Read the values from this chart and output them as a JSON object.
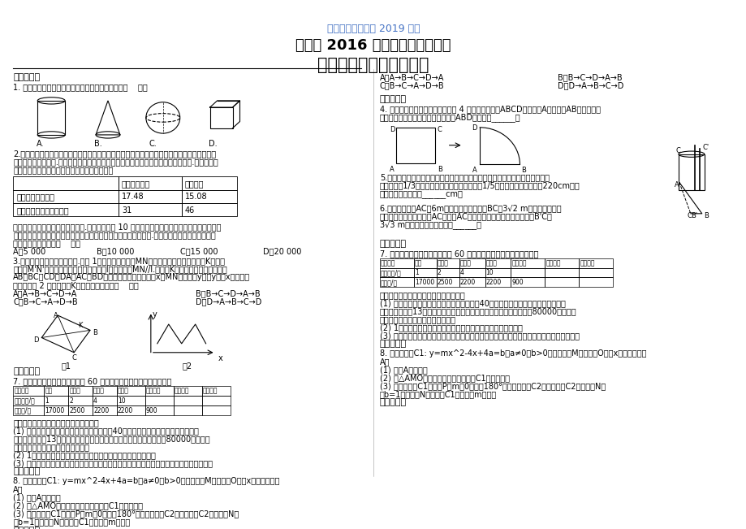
{
  "title1": "数学中考教学资料 2019 年编",
  "title2": "江西省 2016 年中等学校招生考试",
  "title3": "数学信息训练试题（二）",
  "bg_color": "#ffffff",
  "title1_color": "#4472c4",
  "title2_color": "#000000",
  "title3_color": "#000000",
  "section1": "一、选择题",
  "q1": "1. 下列几何体中，其主视图不是中心对称图形的是（    ）。",
  "q2_lines": [
    "2.油电混动汽车是一种节油、环保的新技术汽车，它将行驶过程中部分原本被浪费的能量回收储",
    "存于内置的蓄电池中.汽车在低速行驶时，使用蓄电池带动电动机驱动汽车，节约燃油.某品牌油电",
    "混动汽车与普通汽车的相关成本数据统计如下："
  ],
  "table_headers": [
    "",
    "油电混动汽车",
    "普通汽车"
  ],
  "table_row1": [
    "购买价格（万元）",
    "17.48",
    "15.08"
  ],
  "table_row2": [
    "每百公里燃油成本（元）",
    "31",
    "46"
  ],
  "q2_cont_lines": [
    "某人计划购入一辆上述品牌的汽车.他估算了未来 10 年的用车成本，在只考虑车价和燃油成本的",
    "情况下，发现选择油电混动汽车的成本不高于选择普通汽车的成本.则他在估算时，预计平均每年",
    "行驶的公里数至少为（    ）。"
  ],
  "q2_opts": [
    "A．5 000",
    "B．10 000",
    "C．15 000",
    "D．20 000"
  ],
  "q3_lines": [
    "3.小明在暗室做小孔成像实验.如图 1，固定光源（线段MN）发出的光经过小孔（动点K）成像",
    "（线段M'N'）于是移长的固定挡板（直线l）上，其中MN//l.已知点K匀速运动，其运动路径由",
    "AB、BC、CD、DA、AC、BD组成，记它的运动时间为x，MN的长度为y，若y关于x的函数图",
    "象大致如图 2 所示，则点K的运动路径可能为（    ）。"
  ],
  "q3_opts": [
    "A．A→B→C→D→A",
    "B．B→C→D→A→B",
    "C．B→C→A→D→B",
    "D．D→A→B→C→D"
  ],
  "section2": "二、填空题",
  "q4_lines": [
    "4. 如图，某数学兴趣小组将边长为 4 的正方形铁丝框ABCD变形为以A为圆心、AB为半径的扇",
    "形（忽略铁丝的粗细），则所得扇形ABD的面积为______。"
  ],
  "q5_lines": [
    "5.如图，两根筷子竖直于斜底水平的木桶中，在桶中加入水后，一根露出水面的",
    "长度是它的1/3，另一根露出水面的长度是它的1/5，两根筷子长度之和为220cm，此",
    "时木桶中水的深度是______cm。"
  ],
  "q6_lines": [
    "6.如图，钓鱼竿AC长6m，露在水面上的鱼线BC长3√2 m，某钓者眼看着",
    "鱼钓上的情况，使钓鱼竿AC转动到AC的位置，此时露在水面上的鱼线B'C为",
    "3√3 m，钓鱼竿转动的角度是______。"
  ],
  "section3": "三、解答题",
  "q7_line": "7. 某私立中学准备招聘教职员工 60 名，所有员工的月工资情况如下：",
  "table2_headers": [
    "人员结构",
    "校长",
    "副校长",
    "处主任",
    "数组长",
    "高级教师",
    "中级教师",
    "初级教师"
  ],
  "table2_row1": [
    "人员人数/人",
    "1",
    "2",
    "4",
    "10",
    "",
    "",
    ""
  ],
  "table2_row2": [
    "月工资/元",
    "17000",
    "2500",
    "2200",
    "2200",
    "900",
    "",
    ""
  ],
  "q7_cont_lines": [
    "请根据上表提供的信息，回答下列问题：",
    "(1) 如果学校准备招聘高级教师和中级教师共40名（其他员工人数不变），其中高级",
    "教师至少需招聘13人，而且学校对高级、中级教师的月支付工资不超过80000元，按学",
    "校要求，高级教师有几种招聘方案？",
    "(2) 1中的高级教师人数对学校支付的月工资最少？请说明理由。",
    "(3) 在学校所支付的月工资最少时，据上表补充完整，并求所有员工月工资的中位数和众数。"
  ],
  "section4": "四、解答题",
  "q8_lines": [
    "8. 已知抛物线C1: y=mx^2-4x+4a=b（a≠0，b>0）的顶点为M，经过点O且与x轴另一交点为",
    "A。",
    "(1) 求点A的坐标；",
    "(2) 若△AMO为等腰三角形，求抛物线C1的解析式；",
    "(3) 现将抛物线C1绕定点P（m，0）旋转180°后得到抛物线C2，若抛物线C2的顶点为N，",
    "当b=1，且顶点N在抛物线C1上时，求m的值。"
  ],
  "section5": "五、解答题"
}
